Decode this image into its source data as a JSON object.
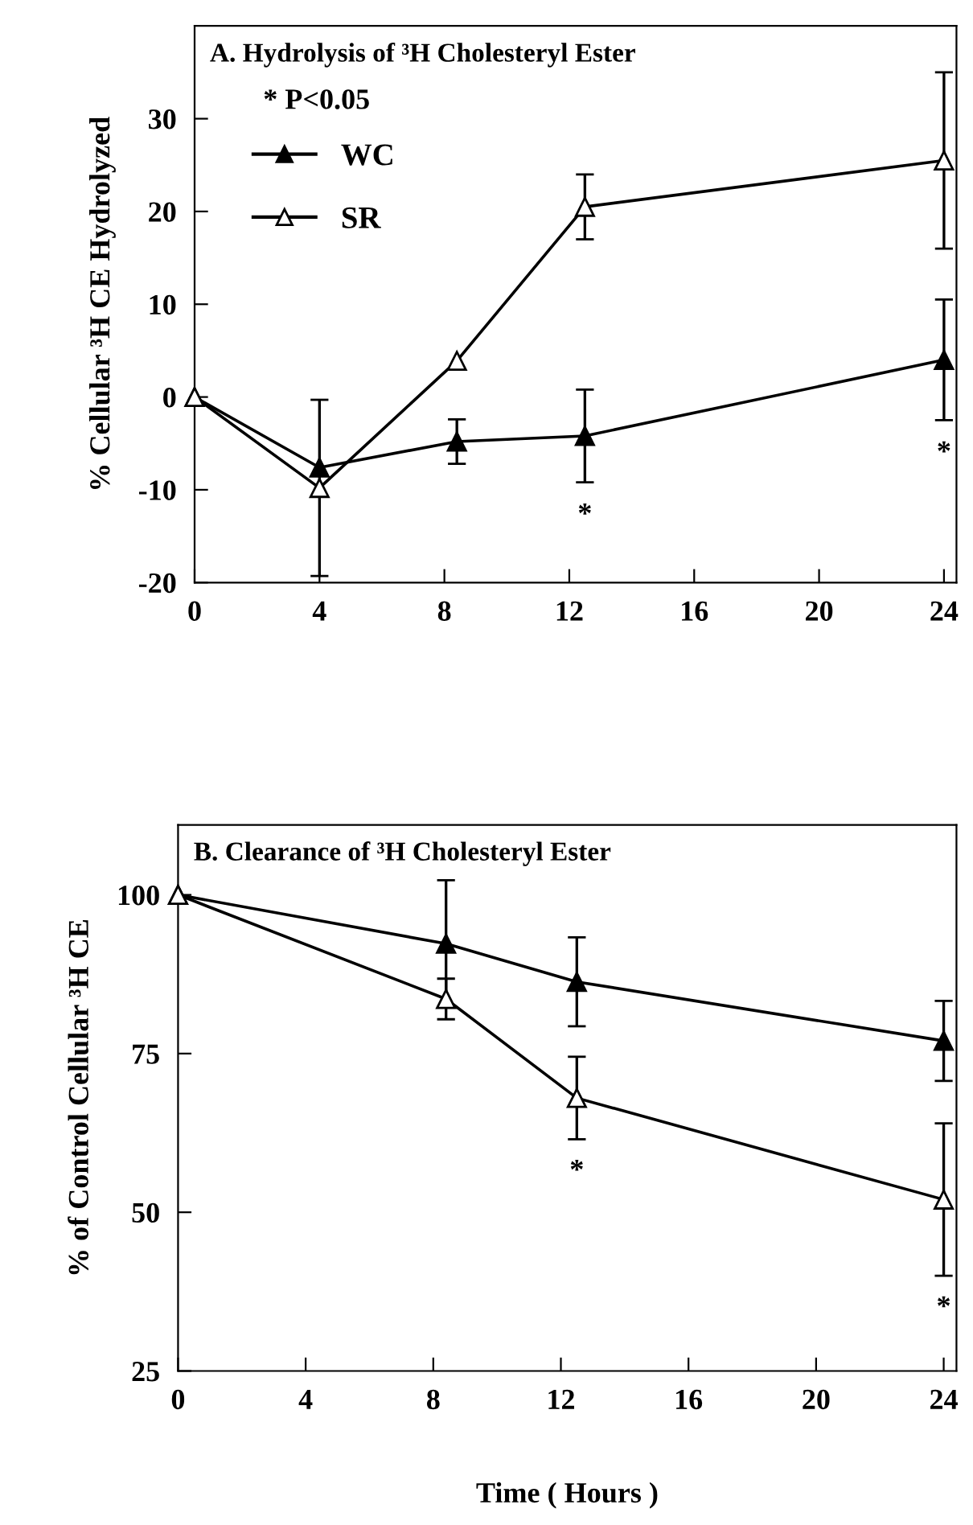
{
  "chart_data": [
    {
      "type": "line",
      "title": "A. Hydrolysis of ³H Cholesteryl Ester",
      "ylabel": "% Cellular ³H CE Hydrolyzed",
      "x": [
        0,
        4,
        8.4,
        12.5,
        24
      ],
      "xlim": [
        0,
        24.4
      ],
      "xticks": [
        0,
        4,
        8,
        12,
        16,
        20,
        24
      ],
      "ylim": [
        -20,
        40
      ],
      "yticks": [
        -20,
        -10,
        0,
        10,
        20,
        30
      ],
      "marker": "triangle",
      "line_style": "solid",
      "legend": "top left",
      "grid": false,
      "series": [
        {
          "name": "WC",
          "color": "#000000",
          "values": [
            0,
            -7.6,
            -4.8,
            -4.2,
            4
          ],
          "errors": [
            null,
            null,
            2.4,
            5,
            6.5
          ]
        },
        {
          "name": "SR",
          "color": "#ffffff",
          "values": [
            0,
            -9.8,
            3.9,
            20.5,
            25.5
          ],
          "errors": [
            null,
            9.5,
            null,
            3.5,
            9.5
          ]
        }
      ],
      "annotations": [
        "* P<0.05",
        "*",
        "*"
      ]
    },
    {
      "type": "line",
      "title": "B. Clearance of ³H Cholesteryl Ester",
      "ylabel": "% of Control Cellular ³H CE",
      "xlabel": "Time ( Hours )",
      "x": [
        0,
        8.4,
        12.5,
        24
      ],
      "xlim": [
        0,
        24.4
      ],
      "xticks": [
        0,
        4,
        8,
        12,
        16,
        20,
        24
      ],
      "ylim": [
        25,
        111
      ],
      "yticks": [
        25,
        50,
        75,
        100
      ],
      "marker": "triangle",
      "line_style": "solid",
      "grid": false,
      "series": [
        {
          "color": "#000000",
          "values": [
            100,
            92.3,
            86.3,
            77
          ],
          "errors": [
            null,
            10,
            7,
            6.3
          ]
        },
        {
          "color": "#ffffff",
          "values": [
            100,
            83.6,
            68,
            52
          ],
          "errors": [
            null,
            3.2,
            6.5,
            12
          ]
        }
      ],
      "annotations": [
        "*",
        "*"
      ]
    }
  ]
}
